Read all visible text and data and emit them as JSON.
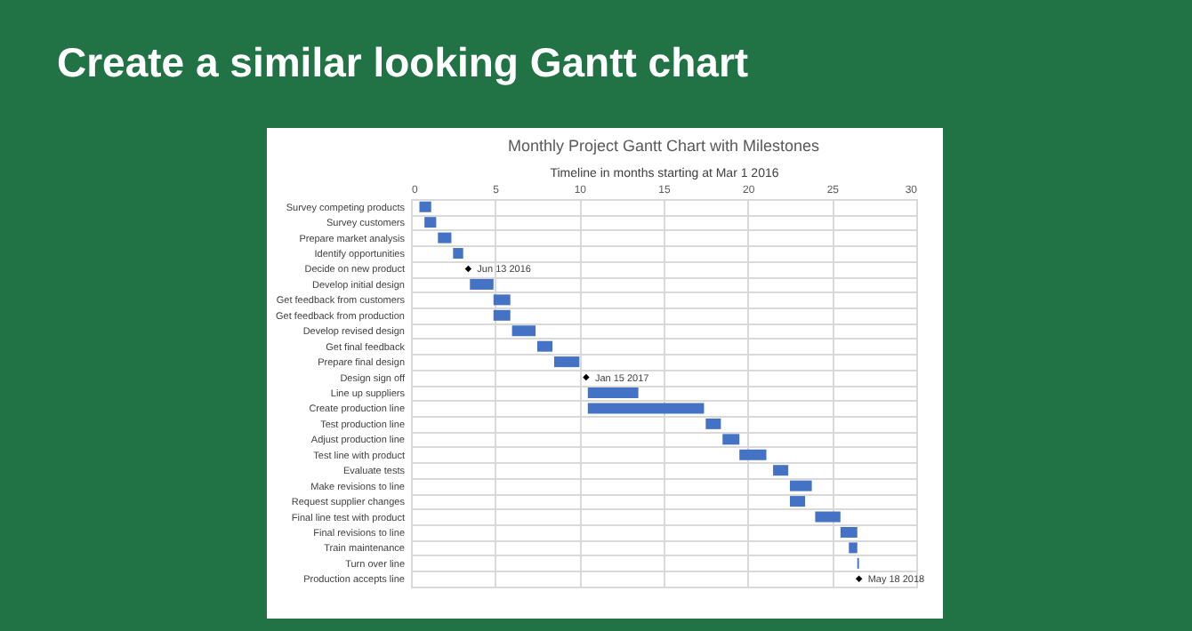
{
  "chart_data": {
    "type": "bar",
    "orientation": "horizontal",
    "title": "Create a similar looking Gantt chart",
    "subtitle": "Monthly Project Gantt Chart with Milestones",
    "xlabel": "Timeline in months starting at Mar 1 2016",
    "categories": [
      "Survey competing products",
      "Survey customers",
      "Prepare market analysis",
      "Identify opportunities",
      "Decide on new product",
      "Develop initial design",
      "Get feedback from customers",
      "Get feedback from production",
      "Develop revised design",
      "Get final feedback",
      "Prepare final design",
      "Design sign off",
      "Line up suppliers",
      "Create production line",
      "Test production line",
      "Adjust production line",
      "Test line with product",
      "Evaluate tests",
      "Make revisions to line",
      "Request supplier changes",
      "Final line test with product",
      "Final revisions to line",
      "Train maintenance",
      "Turn over line",
      "Production accepts line"
    ],
    "series": [
      {
        "color": "#4472c4",
        "base": [
          0.5,
          0.8,
          1.6,
          2.5,
          null,
          3.5,
          4.9,
          4.9,
          6.0,
          7.5,
          8.5,
          null,
          10.5,
          10.5,
          17.5,
          18.5,
          19.5,
          21.5,
          22.5,
          22.5,
          24.0,
          25.5,
          26.0,
          26.5,
          null
        ],
        "values": [
          0.7,
          0.7,
          0.8,
          0.6,
          null,
          1.4,
          1.0,
          1.0,
          1.4,
          0.9,
          1.5,
          null,
          3.0,
          6.9,
          0.9,
          1.0,
          1.6,
          0.9,
          1.3,
          0.9,
          1.5,
          1.0,
          0.5,
          0.1,
          null
        ]
      },
      {
        "type": "scatter",
        "color": "#000000",
        "values": [
          null,
          null,
          null,
          null,
          3.4,
          null,
          null,
          null,
          null,
          null,
          null,
          10.4,
          null,
          null,
          null,
          null,
          null,
          null,
          null,
          null,
          null,
          null,
          null,
          null,
          26.6
        ]
      }
    ],
    "marker": "diamond",
    "annotations": [
      {
        "text": "Jun 13 2016",
        "x": 3.4,
        "y": "Decide on new product"
      },
      {
        "text": "Jan 15 2017",
        "x": 10.4,
        "y": "Design sign off"
      },
      {
        "text": "May 18 2018",
        "x": 26.6,
        "y": "Production accepts line"
      }
    ],
    "xlim": [
      0,
      30
    ],
    "xticks": [
      0,
      5,
      10,
      15,
      20,
      25,
      30
    ],
    "grid": true
  }
}
